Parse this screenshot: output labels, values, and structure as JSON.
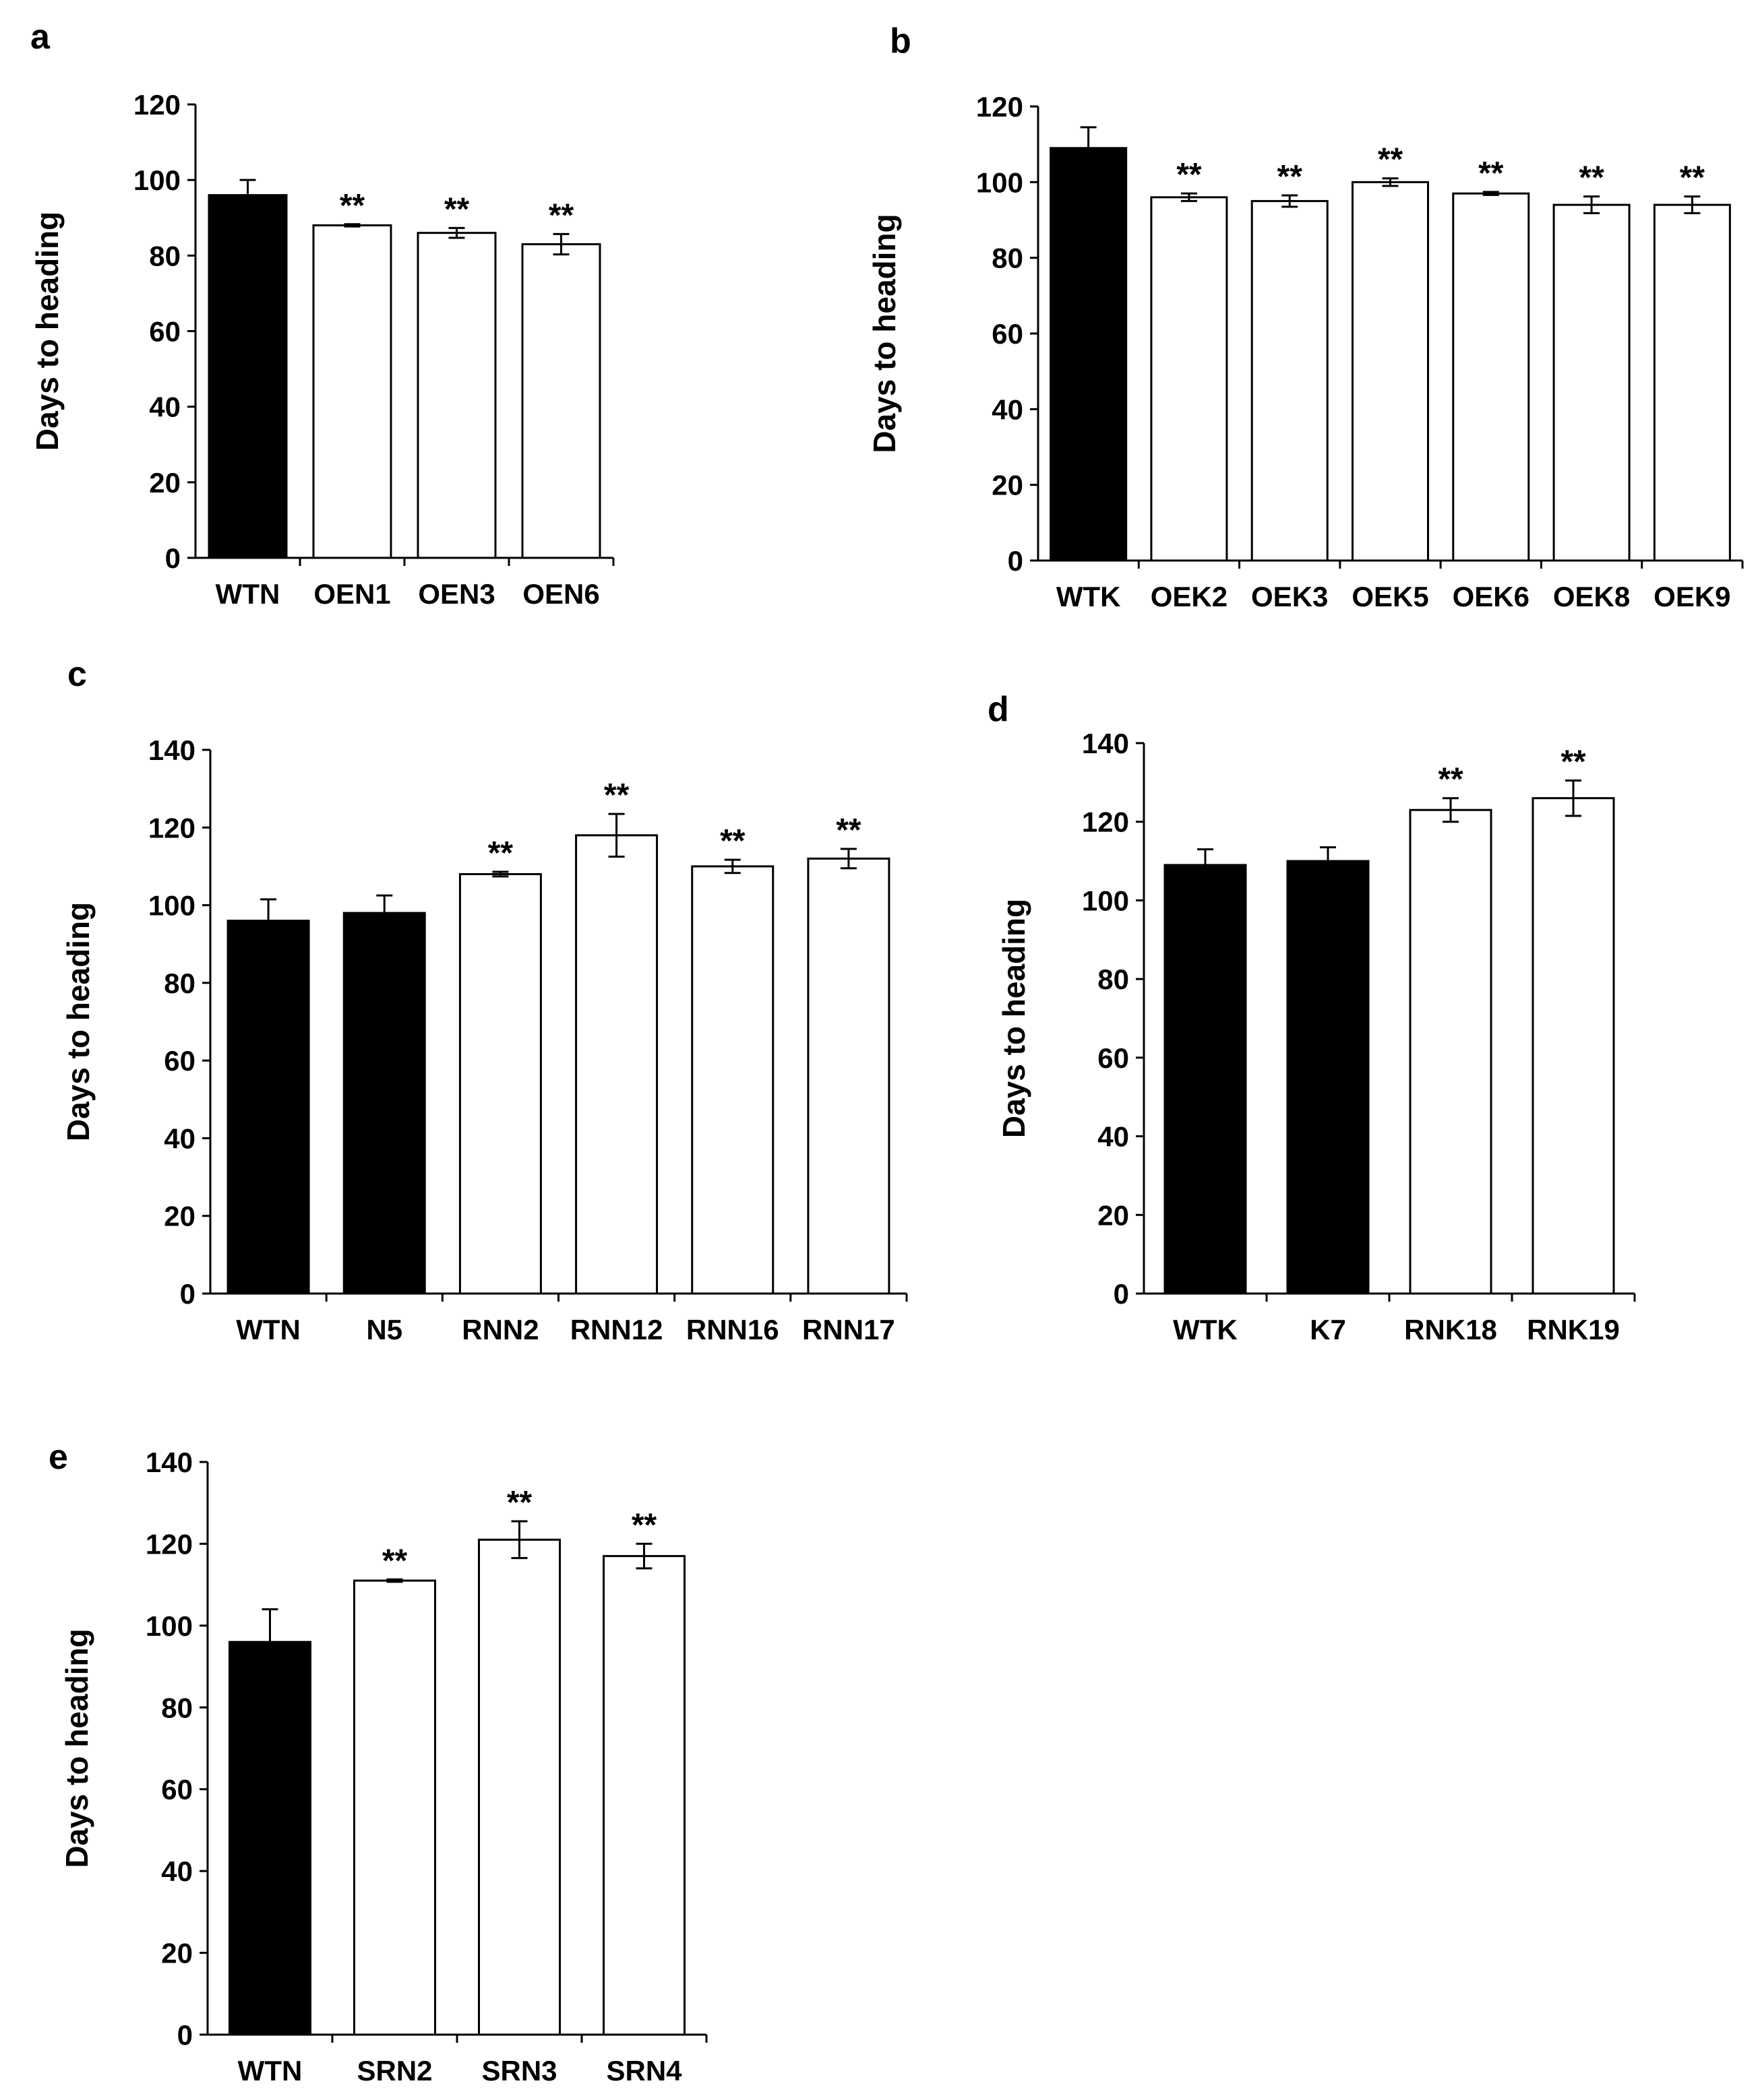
{
  "chart_data": [
    {
      "panel": "a",
      "type": "bar",
      "ylabel": "Days to heading",
      "ylim": [
        0,
        120
      ],
      "yticks": [
        0,
        20,
        40,
        60,
        80,
        100,
        120
      ],
      "categories": [
        "WTN",
        "OEN1",
        "OEN3",
        "OEN6"
      ],
      "values": [
        96,
        88,
        86,
        83
      ],
      "errors": [
        4,
        0.3,
        1.3,
        2.7
      ],
      "fill": [
        "black",
        "white",
        "white",
        "white"
      ],
      "significance": [
        "",
        "**",
        "**",
        "**"
      ]
    },
    {
      "panel": "b",
      "type": "bar",
      "ylabel": "Days to heading",
      "ylim": [
        0,
        120
      ],
      "yticks": [
        0,
        20,
        40,
        60,
        80,
        100,
        120
      ],
      "categories": [
        "WTK",
        "OEK2",
        "OEK3",
        "OEK5",
        "OEK6",
        "OEK8",
        "OEK9"
      ],
      "values": [
        109,
        96,
        95,
        100,
        97,
        94,
        94
      ],
      "errors": [
        5.5,
        1,
        1.5,
        1,
        0.4,
        2.2,
        2.2
      ],
      "fill": [
        "black",
        "white",
        "white",
        "white",
        "white",
        "white",
        "white"
      ],
      "significance": [
        "",
        "**",
        "**",
        "**",
        "**",
        "**",
        "**"
      ]
    },
    {
      "panel": "c",
      "type": "bar",
      "ylabel": "Days to heading",
      "ylim": [
        0,
        140
      ],
      "yticks": [
        0,
        20,
        40,
        60,
        80,
        100,
        120,
        140
      ],
      "categories": [
        "WTN",
        "N5",
        "RNN2",
        "RNN12",
        "RNN16",
        "RNN17"
      ],
      "values": [
        96,
        98,
        108,
        118,
        110,
        112
      ],
      "errors": [
        5.5,
        4.5,
        0.6,
        5.5,
        1.7,
        2.5
      ],
      "fill": [
        "black",
        "black",
        "white",
        "white",
        "white",
        "white"
      ],
      "significance": [
        "",
        "",
        "**",
        "**",
        "**",
        "**"
      ]
    },
    {
      "panel": "d",
      "type": "bar",
      "ylabel": "Days to heading",
      "ylim": [
        0,
        140
      ],
      "yticks": [
        0,
        20,
        40,
        60,
        80,
        100,
        120,
        140
      ],
      "categories": [
        "WTK",
        "K7",
        "RNK18",
        "RNK19"
      ],
      "values": [
        109,
        110,
        123,
        126
      ],
      "errors": [
        4,
        3.5,
        3,
        4.5
      ],
      "fill": [
        "black",
        "black",
        "white",
        "white"
      ],
      "significance": [
        "",
        "",
        "**",
        "**"
      ]
    },
    {
      "panel": "e",
      "type": "bar",
      "ylabel": "Days to heading",
      "ylim": [
        0,
        140
      ],
      "yticks": [
        0,
        20,
        40,
        60,
        80,
        100,
        120,
        140
      ],
      "categories": [
        "WTN",
        "SRN2",
        "SRN3",
        "SRN4"
      ],
      "values": [
        96,
        111,
        121,
        117
      ],
      "errors": [
        8,
        0.3,
        4.5,
        3
      ],
      "fill": [
        "black",
        "white",
        "white",
        "white"
      ],
      "significance": [
        "",
        "**",
        "**",
        "**"
      ]
    }
  ]
}
